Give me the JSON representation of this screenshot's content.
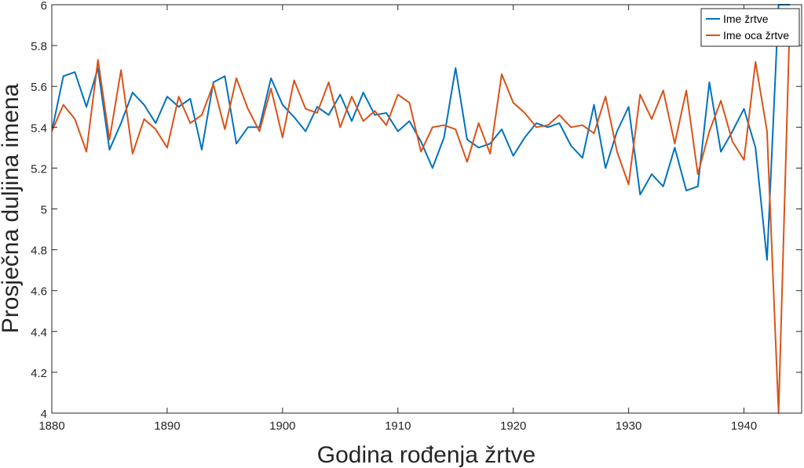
{
  "chart_data": {
    "type": "line",
    "title": "",
    "xlabel": "Godina rođenja žrtve",
    "ylabel": "Prosječna duljina imena",
    "xlim": [
      1880,
      1945
    ],
    "ylim": [
      4,
      6
    ],
    "xticks": [
      1880,
      1890,
      1900,
      1910,
      1920,
      1930,
      1940
    ],
    "yticks": [
      4,
      4.2,
      4.4,
      4.6,
      4.8,
      5,
      5.2,
      5.4,
      5.6,
      5.8,
      6
    ],
    "xtick_labels": [
      "1880",
      "1890",
      "1900",
      "1910",
      "1920",
      "1930",
      "1940"
    ],
    "ytick_labels": [
      "4",
      "4.2",
      "4.4",
      "4.6",
      "4.8",
      "5",
      "5.2",
      "5.4",
      "5.6",
      "5.8",
      "6"
    ],
    "grid": false,
    "legend_position": "top-right",
    "x": [
      1880,
      1881,
      1882,
      1883,
      1884,
      1885,
      1886,
      1887,
      1888,
      1889,
      1890,
      1891,
      1892,
      1893,
      1894,
      1895,
      1896,
      1897,
      1898,
      1899,
      1900,
      1901,
      1902,
      1903,
      1904,
      1905,
      1906,
      1907,
      1908,
      1909,
      1910,
      1911,
      1912,
      1913,
      1914,
      1915,
      1916,
      1917,
      1918,
      1919,
      1920,
      1921,
      1922,
      1923,
      1924,
      1925,
      1926,
      1927,
      1928,
      1929,
      1930,
      1931,
      1932,
      1933,
      1934,
      1935,
      1936,
      1937,
      1938,
      1939,
      1940,
      1941,
      1942,
      1943,
      1944
    ],
    "series": [
      {
        "name": "Ime žrtve",
        "color": "#0072BD",
        "values": [
          5.38,
          5.65,
          5.67,
          5.5,
          5.69,
          5.29,
          5.42,
          5.57,
          5.51,
          5.42,
          5.55,
          5.5,
          5.54,
          5.29,
          5.62,
          5.65,
          5.32,
          5.4,
          5.4,
          5.64,
          5.51,
          5.45,
          5.38,
          5.5,
          5.46,
          5.56,
          5.43,
          5.57,
          5.46,
          5.47,
          5.38,
          5.43,
          5.33,
          5.2,
          5.35,
          5.69,
          5.34,
          5.3,
          5.32,
          5.39,
          5.26,
          5.35,
          5.42,
          5.4,
          5.42,
          5.31,
          5.25,
          5.51,
          5.2,
          5.38,
          5.5,
          5.07,
          5.17,
          5.11,
          5.3,
          5.09,
          5.11,
          5.62,
          5.28,
          5.38,
          5.49,
          5.3,
          4.75,
          6.0,
          6.0
        ]
      },
      {
        "name": "Ime oca žrtve",
        "color": "#D95319",
        "values": [
          5.38,
          5.51,
          5.44,
          5.28,
          5.73,
          5.34,
          5.68,
          5.27,
          5.44,
          5.39,
          5.3,
          5.55,
          5.42,
          5.46,
          5.61,
          5.39,
          5.64,
          5.49,
          5.38,
          5.59,
          5.35,
          5.63,
          5.49,
          5.47,
          5.62,
          5.4,
          5.55,
          5.43,
          5.48,
          5.41,
          5.56,
          5.52,
          5.28,
          5.4,
          5.41,
          5.39,
          5.23,
          5.42,
          5.27,
          5.66,
          5.52,
          5.47,
          5.4,
          5.41,
          5.46,
          5.4,
          5.41,
          5.37,
          5.55,
          5.28,
          5.12,
          5.56,
          5.44,
          5.58,
          5.32,
          5.58,
          5.17,
          5.38,
          5.53,
          5.33,
          5.24,
          5.72,
          5.38,
          4.0,
          5.98
        ]
      }
    ]
  }
}
